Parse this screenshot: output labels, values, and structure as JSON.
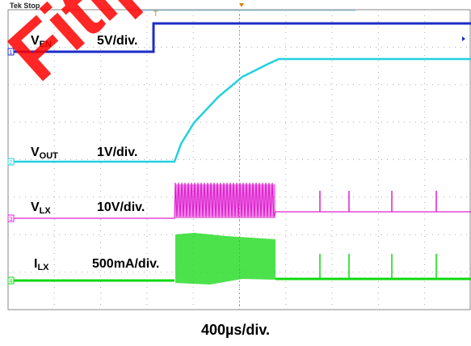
{
  "status": "Tek Stop",
  "watermark": "Fitipower",
  "timebase": "400µs/div.",
  "colors": {
    "ven": "#1c2cc8",
    "vout": "#22d0e0",
    "vlx": "#e020d0",
    "ilx": "#10d810",
    "grid": "#aaaaaa"
  },
  "channels": [
    {
      "id": "ven",
      "name": "V",
      "sub": "EN",
      "scale": "5V/div."
    },
    {
      "id": "vout",
      "name": "V",
      "sub": "OUT",
      "scale": "1V/div."
    },
    {
      "id": "vlx",
      "name": "V",
      "sub": "LX",
      "scale": "10V/div."
    },
    {
      "id": "ilx",
      "name": "I",
      "sub": "LX",
      "scale": "500mA/div."
    }
  ],
  "chart_data": {
    "type": "line",
    "xlabel": "400µs/div.",
    "series": [
      {
        "name": "VEN",
        "scale": "5V/div."
      },
      {
        "name": "VOUT",
        "scale": "1V/div."
      },
      {
        "name": "VLX",
        "scale": "10V/div."
      },
      {
        "name": "ILX",
        "scale": "500mA/div."
      }
    ]
  }
}
